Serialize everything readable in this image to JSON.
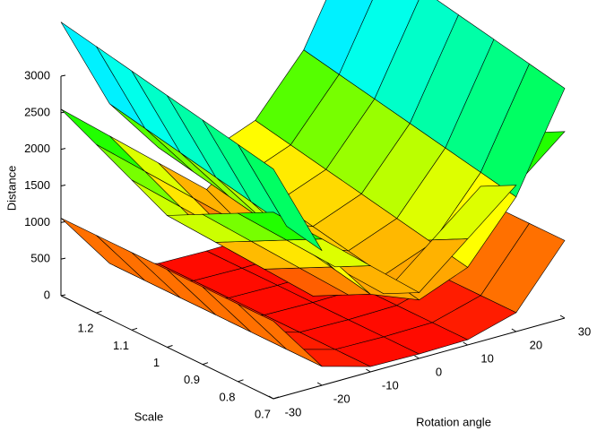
{
  "chart_data": {
    "type": "surface",
    "xlabel": "Rotation angle",
    "ylabel": "Scale",
    "zlabel": "Distance",
    "colormap": "hsv",
    "xlim": [
      -30,
      30
    ],
    "xticks": [
      -30,
      -20,
      -10,
      0,
      10,
      20,
      30
    ],
    "ylim": [
      0.7,
      1.3
    ],
    "yticks": [
      0.7,
      0.8,
      0.9,
      1,
      1.1,
      1.2
    ],
    "zlim": [
      0,
      3000
    ],
    "zticks": [
      0,
      500,
      1000,
      1500,
      2000,
      2500,
      3000
    ],
    "x": [
      -30,
      -20,
      -10,
      0,
      10,
      20,
      30
    ],
    "y": [
      0.7,
      0.8,
      0.9,
      1.0,
      1.1,
      1.2,
      1.3
    ],
    "surfaces": [
      {
        "z": [
          [
            3140,
            1840,
            1060,
            800,
            1060,
            1840,
            3140
          ],
          [
            3240,
            1940,
            1160,
            900,
            1160,
            1940,
            3240
          ],
          [
            3340,
            2040,
            1260,
            1000,
            1260,
            2040,
            3340
          ],
          [
            3440,
            2140,
            1360,
            1100,
            1360,
            2140,
            3440
          ],
          [
            3540,
            2240,
            1460,
            1200,
            1460,
            2240,
            3540
          ],
          [
            3640,
            2340,
            1560,
            1300,
            1560,
            2340,
            3640
          ],
          [
            3740,
            2440,
            1660,
            1400,
            1660,
            2440,
            3740
          ]
        ]
      },
      {
        "z": [
          [
            2550,
            2000,
            1450,
            900,
            1450,
            2000,
            2550
          ],
          [
            2300,
            1750,
            1200,
            650,
            1200,
            1750,
            2300
          ],
          [
            2050,
            1500,
            950,
            400,
            950,
            1500,
            2050
          ],
          [
            1800,
            1250,
            700,
            150,
            700,
            1250,
            1800
          ],
          [
            2050,
            1500,
            950,
            400,
            950,
            1500,
            2050
          ],
          [
            2300,
            1750,
            1200,
            650,
            1200,
            1750,
            2300
          ],
          [
            2550,
            2000,
            1450,
            900,
            1450,
            2000,
            2550
          ]
        ]
      },
      {
        "z": [
          [
            1060,
            258,
            72,
            60,
            72,
            258,
            1060
          ],
          [
            1060,
            258,
            72,
            60,
            72,
            258,
            1060
          ],
          [
            1060,
            258,
            72,
            60,
            72,
            258,
            1060
          ],
          [
            1060,
            258,
            72,
            60,
            72,
            258,
            1060
          ],
          [
            1060,
            258,
            72,
            60,
            72,
            258,
            1060
          ],
          [
            1060,
            258,
            72,
            60,
            72,
            258,
            1060
          ],
          [
            1060,
            258,
            72,
            60,
            72,
            258,
            1060
          ]
        ]
      }
    ]
  }
}
